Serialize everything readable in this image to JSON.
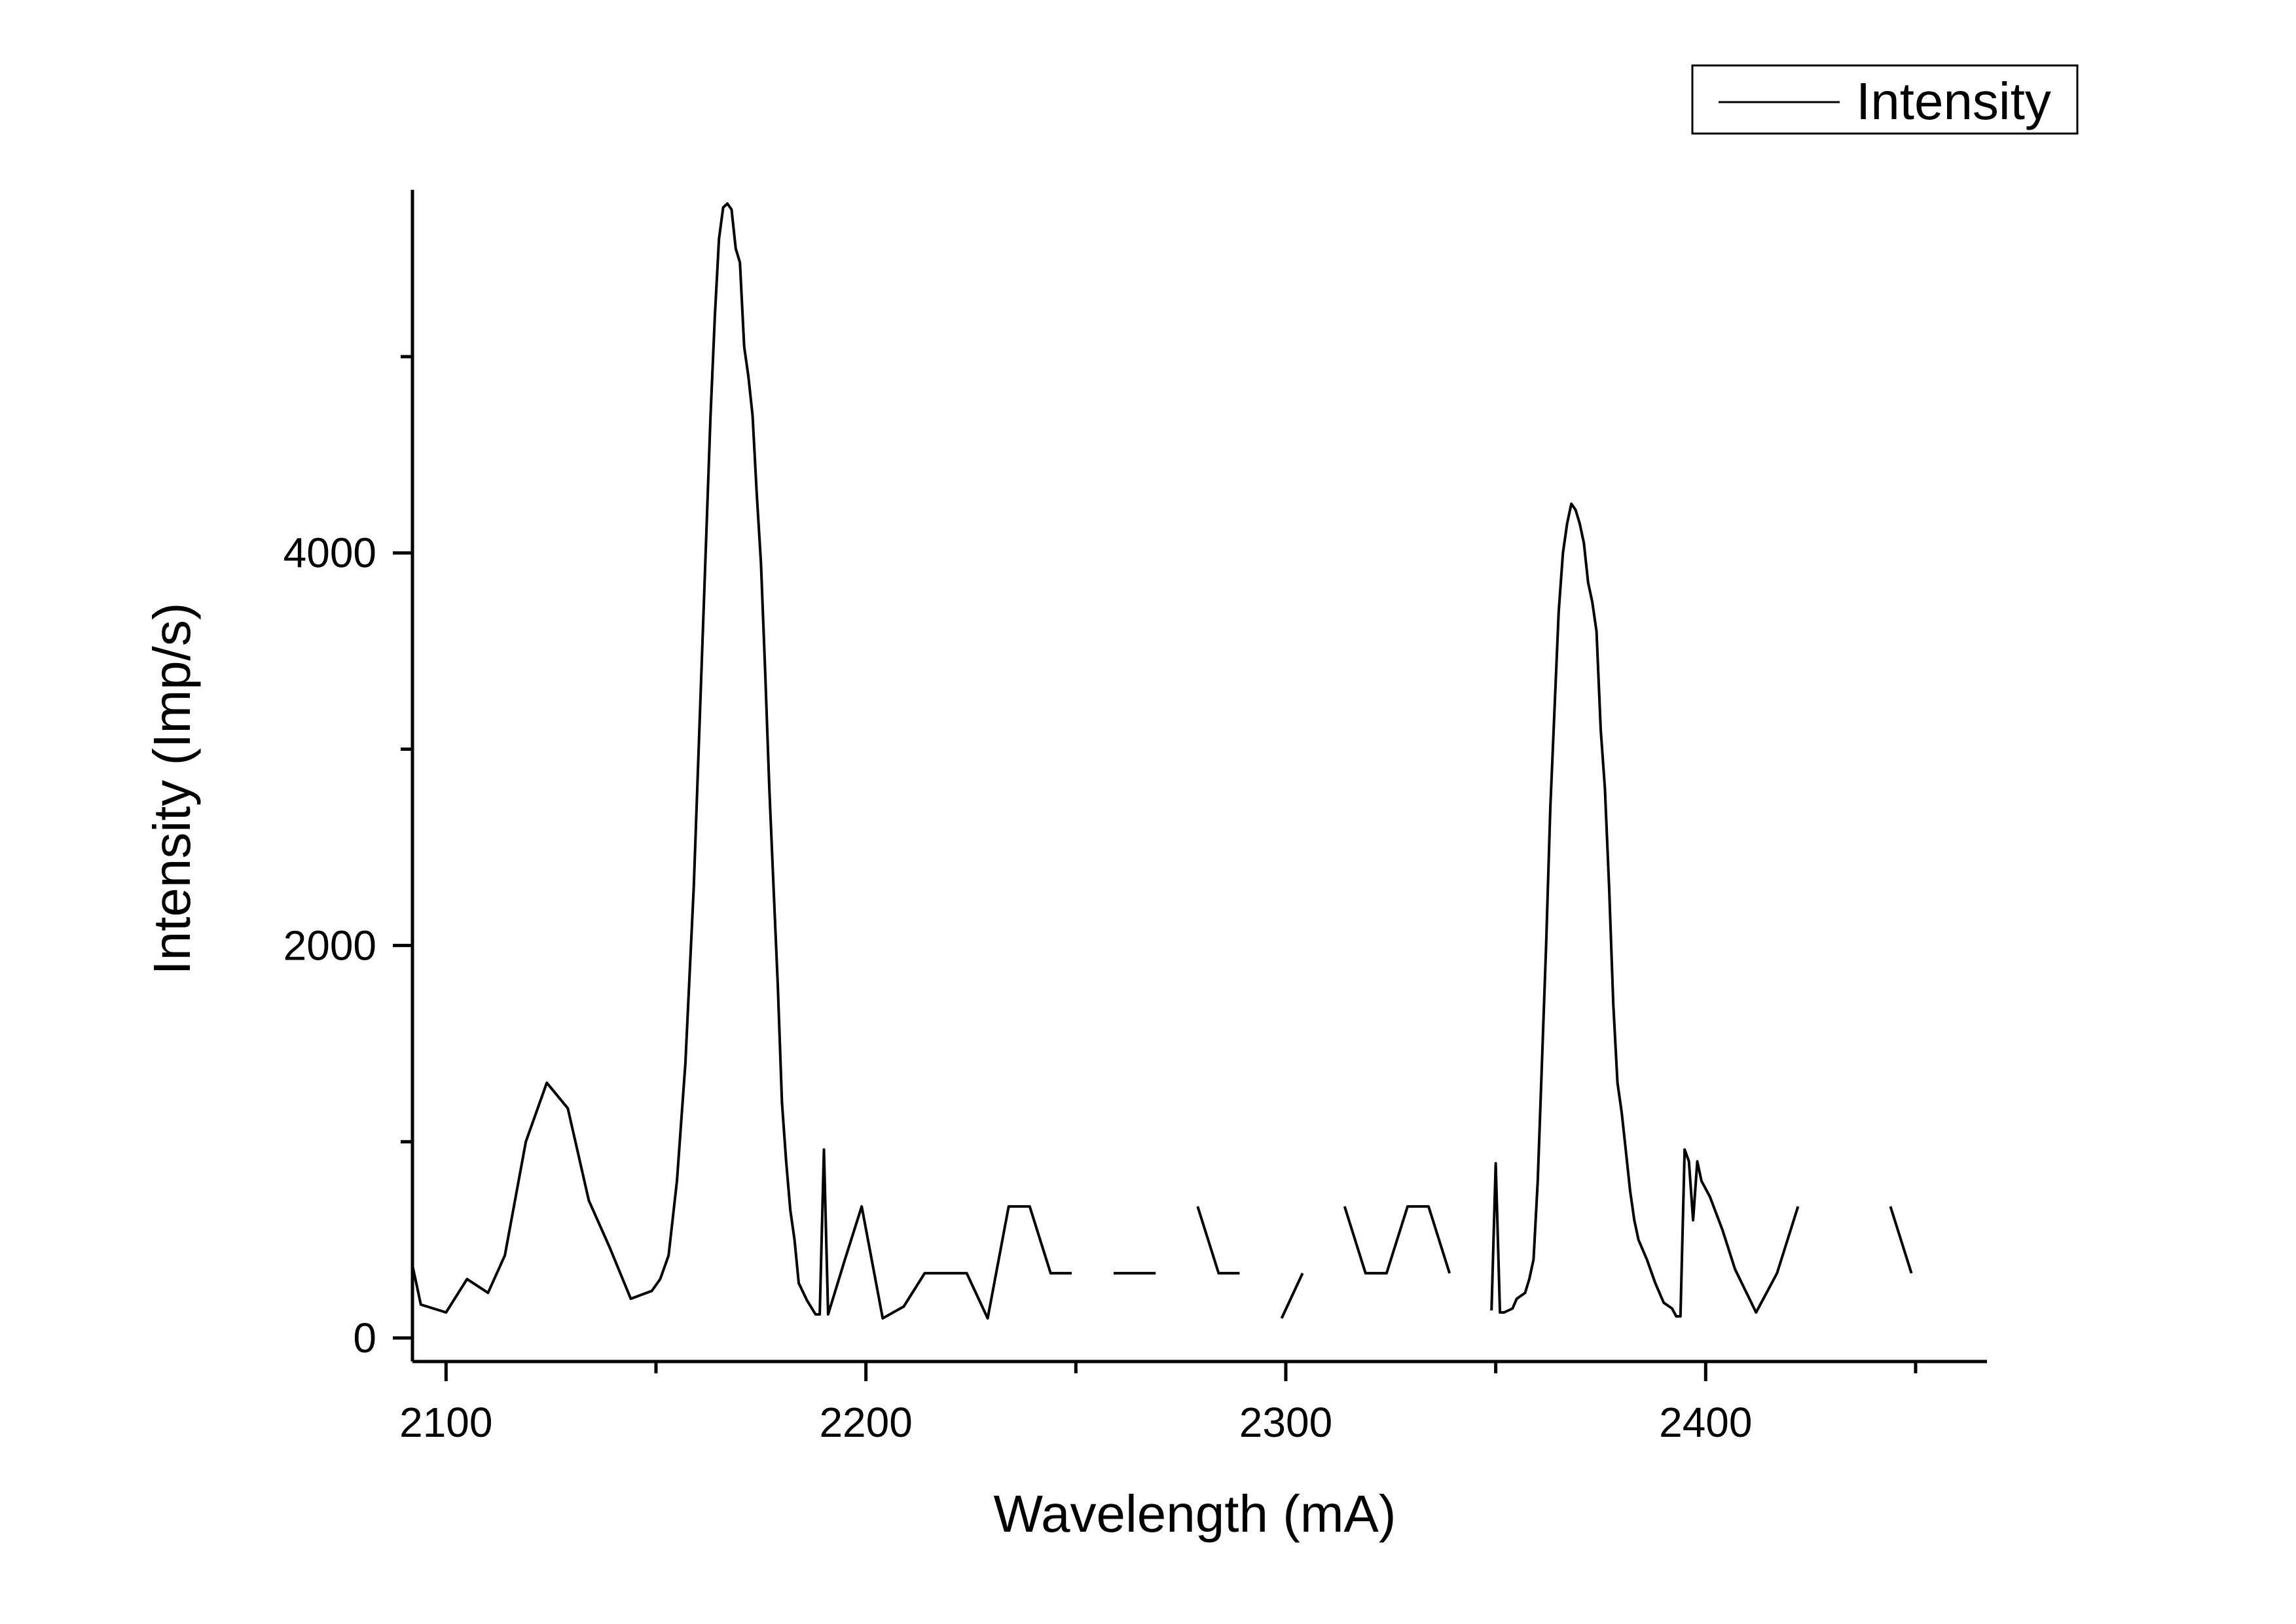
{
  "chart_data": {
    "type": "line",
    "xlabel": "Wavelength (mA)",
    "ylabel": "Intensity (Imp/s)",
    "xlim": [
      2092,
      2467
    ],
    "ylim": [
      -120,
      5850
    ],
    "x_ticks_major": [
      2100,
      2200,
      2300,
      2400
    ],
    "x_ticks_minor": [
      2150,
      2250,
      2350,
      2450
    ],
    "y_ticks_major": [
      0,
      2000,
      4000
    ],
    "y_ticks_minor": [
      1000,
      3000,
      5000
    ],
    "grid": false,
    "legend": {
      "position": "top-right",
      "entries": [
        "Intensity"
      ]
    },
    "series": [
      {
        "name": "Intensity",
        "color": "#000000",
        "segments": [
          [
            [
              2092,
              370
            ],
            [
              2094,
              170
            ],
            [
              2100,
              130
            ],
            [
              2105,
              300
            ],
            [
              2110,
              230
            ],
            [
              2114,
              420
            ],
            [
              2119,
              1000
            ],
            [
              2124,
              1300
            ],
            [
              2129,
              1170
            ],
            [
              2134,
              700
            ],
            [
              2139,
              460
            ],
            [
              2144,
              200
            ],
            [
              2149,
              240
            ],
            [
              2151,
              300
            ],
            [
              2153,
              420
            ],
            [
              2155,
              800
            ],
            [
              2157,
              1400
            ],
            [
              2159,
              2300
            ],
            [
              2161,
              3500
            ],
            [
              2163,
              4700
            ],
            [
              2164,
              5200
            ],
            [
              2165,
              5600
            ],
            [
              2166,
              5760
            ],
            [
              2167,
              5780
            ],
            [
              2168,
              5750
            ],
            [
              2169,
              5550
            ],
            [
              2170,
              5480
            ],
            [
              2171,
              5050
            ],
            [
              2172,
              4900
            ],
            [
              2173,
              4700
            ],
            [
              2174,
              4300
            ],
            [
              2175,
              3950
            ],
            [
              2176,
              3400
            ],
            [
              2177,
              2800
            ],
            [
              2178,
              2300
            ],
            [
              2179,
              1800
            ],
            [
              2180,
              1200
            ],
            [
              2181,
              900
            ],
            [
              2182,
              650
            ],
            [
              2183,
              500
            ],
            [
              2184,
              280
            ],
            [
              2186,
              190
            ],
            [
              2188,
              120
            ],
            [
              2189,
              120
            ],
            [
              2190,
              960
            ],
            [
              2191,
              120
            ],
            [
              2195,
              400
            ],
            [
              2199,
              670
            ],
            [
              2204,
              100
            ],
            [
              2209,
              160
            ],
            [
              2214,
              330
            ],
            [
              2219,
              330
            ],
            [
              2224,
              330
            ],
            [
              2229,
              100
            ],
            [
              2234,
              670
            ],
            [
              2239,
              670
            ],
            [
              2244,
              330
            ],
            [
              2249,
              330
            ]
          ],
          [
            [
              2259,
              330
            ],
            [
              2269,
              330
            ]
          ],
          [
            [
              2279,
              670
            ],
            [
              2284,
              330
            ],
            [
              2289,
              330
            ]
          ],
          [
            [
              2299,
              100
            ],
            [
              2304,
              330
            ]
          ],
          [
            [
              2314,
              670
            ],
            [
              2319,
              330
            ],
            [
              2324,
              330
            ],
            [
              2329,
              670
            ],
            [
              2334,
              670
            ],
            [
              2339,
              330
            ]
          ],
          [
            [
              2349,
              140
            ],
            [
              2350,
              890
            ],
            [
              2351,
              130
            ],
            [
              2352,
              130
            ],
            [
              2354,
              150
            ],
            [
              2355,
              200
            ],
            [
              2357,
              230
            ],
            [
              2358,
              300
            ],
            [
              2359,
              400
            ],
            [
              2360,
              800
            ],
            [
              2361,
              1400
            ],
            [
              2362,
              2000
            ],
            [
              2363,
              2700
            ],
            [
              2364,
              3200
            ],
            [
              2365,
              3700
            ],
            [
              2366,
              4000
            ],
            [
              2367,
              4150
            ],
            [
              2368,
              4250
            ],
            [
              2369,
              4220
            ],
            [
              2370,
              4150
            ],
            [
              2371,
              4050
            ],
            [
              2372,
              3850
            ],
            [
              2373,
              3750
            ],
            [
              2374,
              3600
            ],
            [
              2375,
              3100
            ],
            [
              2376,
              2800
            ],
            [
              2377,
              2300
            ],
            [
              2378,
              1700
            ],
            [
              2379,
              1300
            ],
            [
              2380,
              1150
            ],
            [
              2381,
              950
            ],
            [
              2382,
              750
            ],
            [
              2383,
              600
            ],
            [
              2384,
              500
            ],
            [
              2386,
              400
            ],
            [
              2388,
              280
            ],
            [
              2390,
              180
            ],
            [
              2392,
              150
            ],
            [
              2393,
              110
            ],
            [
              2394,
              110
            ],
            [
              2395,
              960
            ],
            [
              2396,
              900
            ],
            [
              2397,
              600
            ],
            [
              2398,
              900
            ],
            [
              2399,
              800
            ],
            [
              2401,
              720
            ],
            [
              2404,
              550
            ],
            [
              2407,
              350
            ],
            [
              2412,
              130
            ],
            [
              2417,
              330
            ],
            [
              2422,
              670
            ]
          ],
          [
            [
              2444,
              670
            ],
            [
              2449,
              330
            ]
          ]
        ]
      }
    ]
  }
}
